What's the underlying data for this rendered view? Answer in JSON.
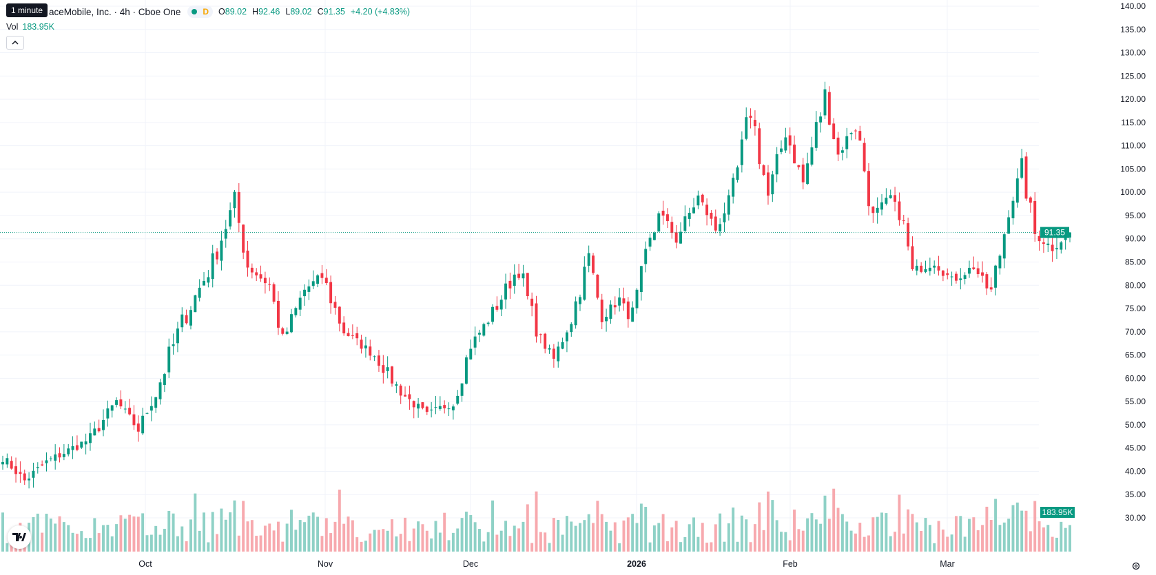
{
  "header": {
    "title": "aceMobile, Inc. · 4h · Cboe One",
    "interval_tooltip": "1 minute",
    "timeframe_badge": "D",
    "ohlc": {
      "o_label": "O",
      "o": "89.02",
      "h_label": "H",
      "h": "92.46",
      "l_label": "L",
      "l": "89.02",
      "c_label": "C",
      "c": "91.35"
    },
    "change": "+4.20 (+4.83%)",
    "volume_label": "Vol",
    "volume_value": "183.95K",
    "collapse_icon": "chevron-up-icon"
  },
  "price_axis": {
    "ticks": [
      "140.00",
      "135.00",
      "130.00",
      "125.00",
      "120.00",
      "115.00",
      "110.00",
      "105.00",
      "100.00",
      "95.00",
      "90.00",
      "85.00",
      "80.00",
      "75.00",
      "70.00",
      "65.00",
      "60.00",
      "55.00",
      "50.00",
      "45.00",
      "40.00",
      "35.00",
      "30.00"
    ],
    "last_price_label": "91.35",
    "last_volume_label": "183.95K"
  },
  "time_axis": {
    "labels": [
      "Oct",
      "Nov",
      "Dec",
      "2026",
      "Feb",
      "Mar"
    ]
  },
  "colors": {
    "up": "#089981",
    "down": "#f23645",
    "up_volume": "#8ed1c6",
    "down_volume": "#f7a9ae",
    "grid": "#f0f3fa"
  },
  "chart_data": {
    "type": "candlestick",
    "ylim": [
      27,
      141
    ],
    "grid": true,
    "last_price": 91.35,
    "months": [
      "Oct",
      "Nov",
      "Dec",
      "2026",
      "Feb",
      "Mar"
    ],
    "anchors": [
      {
        "i": 0,
        "p": 43
      },
      {
        "i": 5,
        "p": 38
      },
      {
        "i": 10,
        "p": 42
      },
      {
        "i": 20,
        "p": 47
      },
      {
        "i": 26,
        "p": 55
      },
      {
        "i": 31,
        "p": 49
      },
      {
        "i": 35,
        "p": 57
      },
      {
        "i": 41,
        "p": 72
      },
      {
        "i": 48,
        "p": 85
      },
      {
        "i": 53,
        "p": 98
      },
      {
        "i": 56,
        "p": 84
      },
      {
        "i": 61,
        "p": 80
      },
      {
        "i": 64,
        "p": 68
      },
      {
        "i": 69,
        "p": 79
      },
      {
        "i": 73,
        "p": 82
      },
      {
        "i": 78,
        "p": 70
      },
      {
        "i": 85,
        "p": 65
      },
      {
        "i": 91,
        "p": 57
      },
      {
        "i": 97,
        "p": 52
      },
      {
        "i": 103,
        "p": 55
      },
      {
        "i": 107,
        "p": 67
      },
      {
        "i": 112,
        "p": 74
      },
      {
        "i": 118,
        "p": 84
      },
      {
        "i": 122,
        "p": 70
      },
      {
        "i": 126,
        "p": 64
      },
      {
        "i": 130,
        "p": 73
      },
      {
        "i": 134,
        "p": 86
      },
      {
        "i": 137,
        "p": 73
      },
      {
        "i": 141,
        "p": 77
      },
      {
        "i": 144,
        "p": 72
      },
      {
        "i": 150,
        "p": 96
      },
      {
        "i": 154,
        "p": 90
      },
      {
        "i": 159,
        "p": 99
      },
      {
        "i": 163,
        "p": 92
      },
      {
        "i": 167,
        "p": 100
      },
      {
        "i": 171,
        "p": 118
      },
      {
        "i": 175,
        "p": 99
      },
      {
        "i": 179,
        "p": 113
      },
      {
        "i": 183,
        "p": 102
      },
      {
        "i": 188,
        "p": 121
      },
      {
        "i": 191,
        "p": 108
      },
      {
        "i": 195,
        "p": 115
      },
      {
        "i": 199,
        "p": 95
      },
      {
        "i": 203,
        "p": 99
      },
      {
        "i": 206,
        "p": 93
      },
      {
        "i": 208,
        "p": 83
      },
      {
        "i": 213,
        "p": 85
      },
      {
        "i": 217,
        "p": 81
      },
      {
        "i": 222,
        "p": 84
      },
      {
        "i": 226,
        "p": 78
      },
      {
        "i": 230,
        "p": 96
      },
      {
        "i": 233,
        "p": 105
      },
      {
        "i": 236,
        "p": 91
      },
      {
        "i": 240,
        "p": 88
      },
      {
        "i": 244,
        "p": 91.35
      }
    ],
    "n_candles": 245
  }
}
